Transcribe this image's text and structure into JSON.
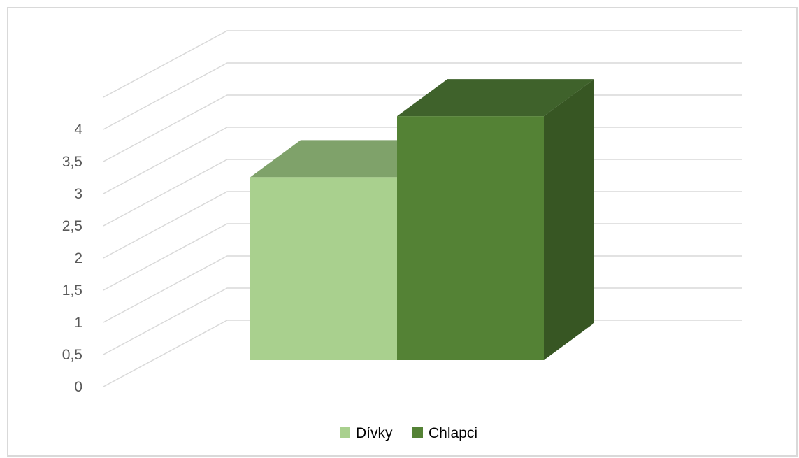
{
  "chart_data": {
    "type": "bar",
    "style": "3d-clustered-column",
    "categories": [
      ""
    ],
    "series": [
      {
        "name": "Dívky",
        "values": [
          3
        ],
        "color": "#a9d08e",
        "top_color": "#7fa26a",
        "side_color": "#8fb476"
      },
      {
        "name": "Chlapci",
        "values": [
          4
        ],
        "color": "#548235",
        "top_color": "#3f622b",
        "side_color": "#375623"
      }
    ],
    "y_ticks": [
      "0",
      "0,5",
      "1",
      "1,5",
      "2",
      "2,5",
      "3",
      "3,5",
      "4"
    ],
    "ylim": [
      0,
      4
    ],
    "grid": true,
    "legend_position": "bottom",
    "title": "",
    "xlabel": "",
    "ylabel": ""
  },
  "colors": {
    "gridline": "#d9d9d9",
    "tick_text": "#595959",
    "border": "#d9d9d9"
  }
}
